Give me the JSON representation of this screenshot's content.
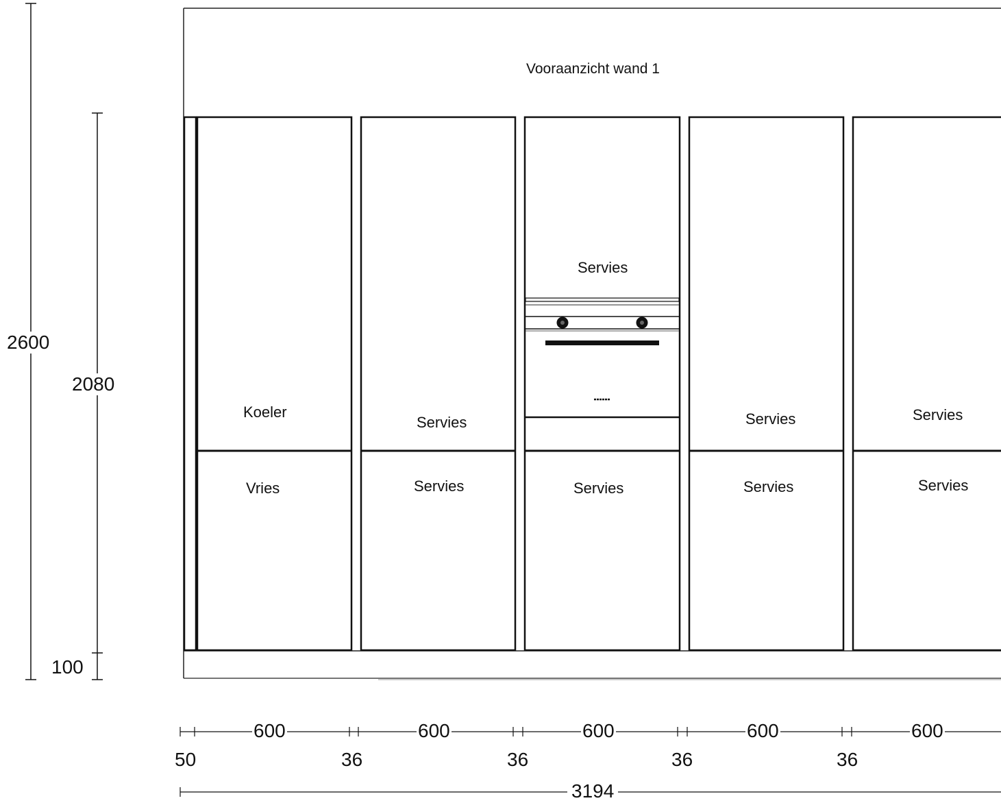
{
  "title": "Vooraanzicht wand 1",
  "dimensions": {
    "total_height": "2600",
    "cabinet_height": "2080",
    "plinth_height": "100",
    "total_width": "3194",
    "filler": "50",
    "gaps": [
      "36",
      "36",
      "36",
      "36"
    ],
    "cabinet_widths": [
      "600",
      "600",
      "600",
      "600",
      "600"
    ]
  },
  "cabinets": [
    {
      "upper": "Koeler",
      "lower": "Vries"
    },
    {
      "upper": "Servies",
      "lower": "Servies"
    },
    {
      "upper": "Servies",
      "lower": "Servies",
      "appliance": "oven"
    },
    {
      "upper": "Servies",
      "lower": "Servies"
    },
    {
      "upper": "Servies",
      "lower": "Servies"
    }
  ]
}
